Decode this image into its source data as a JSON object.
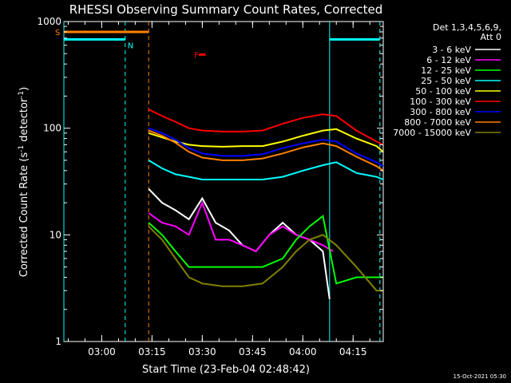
{
  "chart_data": {
    "type": "line",
    "title": "RHESSI Observing Summary Count Rates, Corrected",
    "xlabel": "Start Time (23-Feb-04 02:48:42)",
    "ylabel_main": "Corrected Count Rate (s",
    "ylabel_sup1": "-1",
    "ylabel_mid": " detector",
    "ylabel_sup2": "-1",
    "ylabel_end": ")",
    "y_scale": "log",
    "ylim": [
      1,
      1000
    ],
    "xlim": [
      "02:48:42",
      "04:24:00"
    ],
    "x_ticks": [
      "03:00",
      "03:15",
      "03:30",
      "03:45",
      "04:00",
      "04:15"
    ],
    "y_ticks": [
      "1",
      "10",
      "100",
      "1000"
    ],
    "legend_header": [
      "Det 1,3,4,5,6,9,",
      "Att 0"
    ],
    "legend_position": "right",
    "timestamp": "15-Oct-2021 05:30",
    "series": [
      {
        "name": "3 - 6 keV",
        "color": "#ffffff",
        "x": [
          "03:14",
          "03:18",
          "03:22",
          "03:26",
          "03:30",
          "03:34",
          "03:38",
          "03:42",
          "03:46",
          "03:50",
          "03:54",
          "03:58",
          "04:02",
          "04:06",
          "04:08"
        ],
        "y": [
          27,
          20,
          17,
          14,
          22,
          13,
          11,
          8,
          7,
          10,
          13,
          10,
          9,
          7,
          2.5
        ]
      },
      {
        "name": "6 - 12 keV",
        "color": "#ff00ff",
        "x": [
          "03:14",
          "03:18",
          "03:22",
          "03:26",
          "03:30",
          "03:34",
          "03:38",
          "03:42",
          "03:46",
          "03:50",
          "03:54",
          "03:58",
          "04:02",
          "04:06",
          "04:09"
        ],
        "y": [
          16,
          13,
          12,
          10,
          20,
          9,
          9,
          8,
          7,
          10,
          12,
          10,
          9,
          8,
          7
        ]
      },
      {
        "name": "12 - 25 keV",
        "color": "#00ff00",
        "x": [
          "03:14",
          "03:18",
          "03:22",
          "03:26",
          "03:30",
          "03:36",
          "03:42",
          "03:48",
          "03:54",
          "03:58",
          "04:02",
          "04:06",
          "04:10",
          "04:16",
          "04:22",
          "04:24"
        ],
        "y": [
          13,
          10,
          7,
          5,
          5,
          5,
          5,
          5,
          6,
          9,
          12,
          15,
          3.5,
          4,
          4,
          4
        ]
      },
      {
        "name": "25 - 50 keV",
        "color": "#00ffff",
        "x": [
          "03:14",
          "03:18",
          "03:22",
          "03:26",
          "03:30",
          "03:36",
          "03:42",
          "03:48",
          "03:54",
          "04:00",
          "04:06",
          "04:10",
          "04:16",
          "04:22",
          "04:24"
        ],
        "y": [
          50,
          42,
          37,
          35,
          33,
          33,
          33,
          33,
          35,
          40,
          45,
          48,
          38,
          35,
          33
        ]
      },
      {
        "name": "50 - 100 keV",
        "color": "#ffff00",
        "x": [
          "03:14",
          "03:18",
          "03:22",
          "03:26",
          "03:30",
          "03:36",
          "03:42",
          "03:48",
          "03:54",
          "04:00",
          "04:06",
          "04:10",
          "04:16",
          "04:22",
          "04:24"
        ],
        "y": [
          90,
          82,
          75,
          70,
          68,
          67,
          68,
          68,
          75,
          85,
          95,
          98,
          80,
          68,
          60
        ]
      },
      {
        "name": "100 - 300 keV",
        "color": "#ff0000",
        "x": [
          "03:14",
          "03:18",
          "03:22",
          "03:26",
          "03:30",
          "03:36",
          "03:42",
          "03:48",
          "03:54",
          "04:00",
          "04:06",
          "04:10",
          "04:16",
          "04:22",
          "04:24"
        ],
        "y": [
          150,
          130,
          115,
          100,
          95,
          93,
          93,
          95,
          110,
          125,
          135,
          130,
          95,
          75,
          70
        ]
      },
      {
        "name": "300 - 800 keV",
        "color": "#0000ff",
        "x": [
          "03:14",
          "03:18",
          "03:22",
          "03:26",
          "03:30",
          "03:36",
          "03:42",
          "03:48",
          "03:54",
          "04:00",
          "04:06",
          "04:10",
          "04:16",
          "04:22",
          "04:24"
        ],
        "y": [
          100,
          90,
          78,
          65,
          58,
          55,
          55,
          57,
          65,
          72,
          78,
          75,
          58,
          48,
          44
        ]
      },
      {
        "name": "800 - 7000 keV",
        "color": "#ff8000",
        "x": [
          "03:14",
          "03:18",
          "03:22",
          "03:26",
          "03:30",
          "03:36",
          "03:42",
          "03:48",
          "03:54",
          "04:00",
          "04:06",
          "04:10",
          "04:16",
          "04:22",
          "04:24"
        ],
        "y": [
          95,
          85,
          73,
          60,
          53,
          50,
          50,
          52,
          58,
          66,
          72,
          68,
          54,
          44,
          40
        ]
      },
      {
        "name": "7000 - 15000 keV",
        "color": "#808000",
        "x": [
          "03:14",
          "03:18",
          "03:22",
          "03:26",
          "03:30",
          "03:36",
          "03:42",
          "03:48",
          "03:54",
          "03:58",
          "04:02",
          "04:06",
          "04:10",
          "04:16",
          "04:22",
          "04:24"
        ],
        "y": [
          12,
          9,
          6,
          4,
          3.5,
          3.3,
          3.3,
          3.5,
          5,
          7,
          9,
          10,
          8,
          5,
          3,
          3
        ]
      }
    ],
    "annotations": [
      {
        "label": "S",
        "color": "#ff8000",
        "x_start": "02:48:42",
        "x_end": "03:14",
        "y": 800
      },
      {
        "label": "N",
        "color": "#00ffff",
        "x_start": "02:48:42",
        "x_end": "03:07",
        "y": 680
      },
      {
        "label": "",
        "color": "#00ffff",
        "x_start": "04:08",
        "x_end": "04:23",
        "y": 680
      },
      {
        "label": "F",
        "color": "#ff0000",
        "x_start": "03:29",
        "x_end": "03:31",
        "y": 490
      }
    ],
    "vlines": [
      {
        "x": "02:48:42",
        "color": "#00ffff",
        "style": "solid"
      },
      {
        "x": "03:07",
        "color": "#00ffff",
        "style": "dashed"
      },
      {
        "x": "03:14",
        "color": "#ff8000",
        "style": "dashed"
      },
      {
        "x": "04:08",
        "color": "#00ffff",
        "style": "solid"
      },
      {
        "x": "04:23",
        "color": "#00ffff",
        "style": "dashed"
      }
    ]
  }
}
